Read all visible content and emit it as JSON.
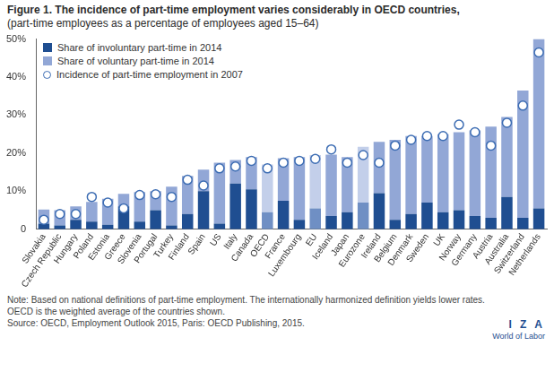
{
  "chart_data": {
    "type": "bar",
    "title": "Figure 1. The incidence of part-time employment varies considerably in OECD countries,",
    "subtitle": "(part-time employees as a percentage of employees aged 15–64)",
    "categories": [
      "Slovakia",
      "Czech Republic",
      "Hungary",
      "Poland",
      "Estonia",
      "Greece",
      "Slovenia",
      "Portugal",
      "Turkey",
      "Finland",
      "Spain",
      "US",
      "Italy",
      "Canada",
      "OECD",
      "France",
      "Luxembourg",
      "EU",
      "Iceland",
      "Japan",
      "Eurozone",
      "Ireland",
      "Belgium",
      "Denmark",
      "Sweden",
      "UK",
      "Norway",
      "Germany",
      "Austria",
      "Australia",
      "Switzerland",
      "Netherlands"
    ],
    "series": [
      {
        "name": "Share of involuntary part-time in 2014",
        "color": "#1f4e91",
        "colors": [
          "#1f4e91",
          "#1f4e91",
          "#1f4e91",
          "#1f4e91",
          "#1f4e91",
          "#1f4e91",
          "#1f4e91",
          "#1f4e91",
          "#1f4e91",
          "#1f4e91",
          "#1f4e91",
          "#1f4e91",
          "#1f4e91",
          "#1f4e91",
          "#6f8fc4",
          "#1f4e91",
          "#1f4e91",
          "#6f8fc4",
          "#1f4e91",
          "#1f4e91",
          "#6f8fc4",
          "#1f4e91",
          "#1f4e91",
          "#1f4e91",
          "#1f4e91",
          "#1f4e91",
          "#1f4e91",
          "#1f4e91",
          "#1f4e91",
          "#1f4e91",
          "#1f4e91",
          "#1f4e91"
        ],
        "values": [
          1.5,
          1.0,
          2.5,
          2.0,
          1.2,
          6.0,
          2.0,
          5.0,
          1.0,
          4.0,
          10.0,
          1.5,
          12.0,
          10.5,
          4.5,
          7.5,
          2.5,
          5.5,
          3.5,
          4.5,
          7.0,
          9.5,
          2.5,
          4.0,
          7.0,
          4.5,
          5.0,
          3.5,
          3.0,
          8.5,
          3.0,
          5.5
        ]
      },
      {
        "name": "Share of voluntary part-time in 2014",
        "color": "#92a7d6",
        "colors": [
          "#92a7d6",
          "#92a7d6",
          "#92a7d6",
          "#92a7d6",
          "#92a7d6",
          "#92a7d6",
          "#92a7d6",
          "#92a7d6",
          "#92a7d6",
          "#92a7d6",
          "#92a7d6",
          "#92a7d6",
          "#92a7d6",
          "#92a7d6",
          "#c3cfea",
          "#92a7d6",
          "#92a7d6",
          "#c3cfea",
          "#92a7d6",
          "#92a7d6",
          "#c3cfea",
          "#92a7d6",
          "#92a7d6",
          "#92a7d6",
          "#92a7d6",
          "#92a7d6",
          "#92a7d6",
          "#92a7d6",
          "#92a7d6",
          "#92a7d6",
          "#92a7d6",
          "#92a7d6"
        ],
        "values": [
          3.7,
          4.0,
          3.5,
          5.2,
          6.8,
          3.3,
          7.8,
          5.0,
          10.2,
          10.0,
          5.7,
          16.0,
          6.2,
          8.5,
          12.5,
          11.2,
          16.5,
          14.0,
          16.1,
          14.5,
          14.7,
          13.5,
          21.0,
          20.5,
          17.5,
          20.5,
          20.5,
          22.5,
          24.0,
          21.0,
          33.5,
          44.5
        ]
      },
      {
        "name": "Incidence of part-time employment in 2007",
        "type": "scatter",
        "marker": "circle",
        "color": "#3d6db3",
        "values": [
          2.5,
          4.0,
          4.0,
          8.5,
          7.0,
          5.5,
          9.0,
          9.2,
          8.5,
          13.0,
          11.5,
          16.0,
          16.5,
          18.0,
          16.0,
          17.5,
          18.0,
          18.5,
          21.0,
          17.5,
          19.5,
          17.5,
          22.0,
          23.5,
          24.5,
          24.5,
          27.5,
          25.5,
          22.0,
          28.0,
          32.5,
          46.5
        ]
      }
    ],
    "stacked": true,
    "ylim": [
      0,
      50
    ],
    "yticks": [
      0,
      {
        "value": 10,
        "label": "10%"
      },
      {
        "value": 20,
        "label": "20%"
      },
      {
        "value": 30,
        "label": "30%"
      },
      {
        "value": 40,
        "label": "40%"
      },
      {
        "value": 50,
        "label": "50%"
      }
    ],
    "grid": false,
    "legend": "upper left",
    "annotations": [
      "Note: Based on national definitions of part-time employment. The internationally harmonized definition yields lower rates.",
      "OECD is the weighted average of the countries shown.",
      "Source: OECD, Employment Outlook 2015, Paris: OECD Publishing, 2015.",
      "I Z A",
      "World of Labor"
    ]
  }
}
